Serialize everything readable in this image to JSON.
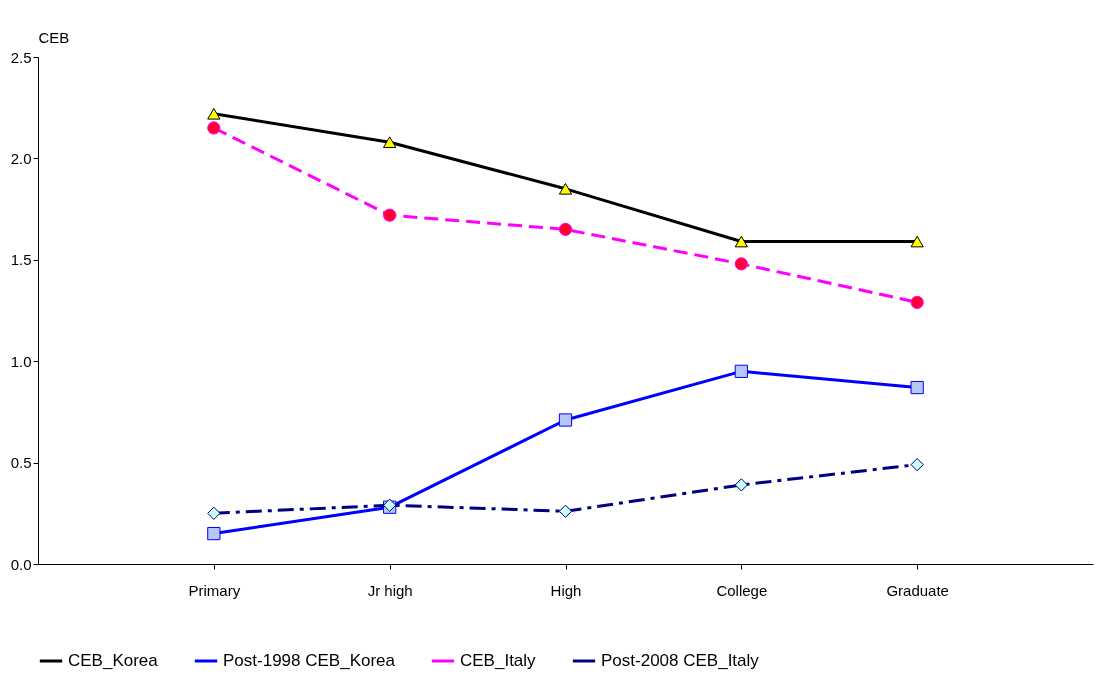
{
  "chart_data": {
    "type": "line",
    "ylabel": "CEB",
    "categories": [
      "Primary",
      "Jr high",
      "High",
      "College",
      "Graduate"
    ],
    "series": [
      {
        "name": "CEB_Korea",
        "color": "#000000",
        "marker": "triangle",
        "line_style": "solid",
        "values": [
          2.22,
          2.08,
          1.85,
          1.59,
          1.59
        ]
      },
      {
        "name": "Post-1998 CEB_Korea",
        "color": "#0000ff",
        "marker": "square",
        "line_style": "solid",
        "values": [
          0.15,
          0.28,
          0.71,
          0.95,
          0.87
        ]
      },
      {
        "name": "CEB_Italy",
        "color": "#ff00ff",
        "marker": "circle",
        "line_style": "dashed",
        "values": [
          2.15,
          1.72,
          1.65,
          1.48,
          1.29
        ]
      },
      {
        "name": "Post-2008 CEB_Italy",
        "color": "#000080",
        "marker": "diamond",
        "line_style": "dashed",
        "values": [
          0.25,
          0.29,
          0.26,
          0.39,
          0.49
        ]
      }
    ],
    "ylim": [
      0,
      2.5
    ],
    "yticks": [
      {
        "value": 0,
        "label": "0.0"
      },
      0.5,
      {
        "value": 1,
        "label": "1.0"
      },
      1.5,
      {
        "value": 2,
        "label": "2.0"
      },
      2.5
    ],
    "grid": false,
    "legend": "bottom"
  }
}
